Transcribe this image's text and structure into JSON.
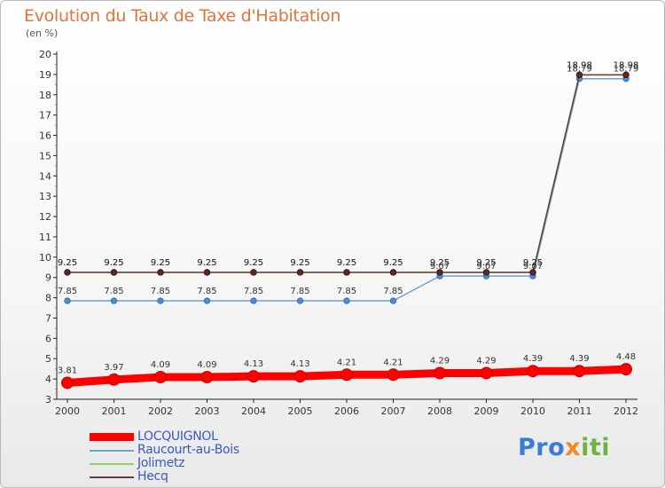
{
  "header": {
    "title": "Evolution du Taux de Taxe d'Habitation",
    "unit": "(en %)"
  },
  "chart_data": {
    "type": "line",
    "x": [
      2000,
      2001,
      2002,
      2003,
      2004,
      2005,
      2006,
      2007,
      2008,
      2009,
      2010,
      2011,
      2012
    ],
    "ylim": [
      3,
      20
    ],
    "yticks": [
      3,
      4,
      5,
      6,
      7,
      8,
      9,
      10,
      11,
      12,
      13,
      14,
      15,
      16,
      17,
      18,
      19,
      20
    ],
    "grid": false,
    "legend_position": "bottom-left",
    "series": [
      {
        "name": "LOCQUIGNOL",
        "color": "#ff0000",
        "values": [
          3.81,
          3.97,
          4.09,
          4.09,
          4.13,
          4.13,
          4.21,
          4.21,
          4.29,
          4.29,
          4.39,
          4.39,
          4.48
        ],
        "labels": [
          "3.81",
          "3.97",
          "4.09",
          "4.09",
          "4.13",
          "4.13",
          "4.21",
          "4.21",
          "4.29",
          "4.29",
          "4.39",
          "4.39",
          "4.48"
        ]
      },
      {
        "name": "Raucourt-au-Bois",
        "color": "#6aa3d8",
        "values": [
          7.85,
          7.85,
          7.85,
          7.85,
          7.85,
          7.85,
          7.85,
          7.85,
          9.07,
          9.07,
          9.07,
          18.79,
          18.79
        ],
        "labels": [
          "7.85",
          "7.85",
          "7.85",
          "7.85",
          "7.85",
          "7.85",
          "7.85",
          "7.85",
          "9.07",
          "9.07",
          "9.07",
          "18.79",
          "18.79"
        ]
      },
      {
        "name": "Jolimetz",
        "color": "#99cc66",
        "values": [
          9.25,
          9.25,
          9.25,
          9.25,
          9.25,
          9.25,
          9.25,
          9.25,
          9.25,
          9.25,
          9.25,
          18.98,
          18.98
        ],
        "labels": [
          "9.25",
          "9.25",
          "9.25",
          "9.25",
          "9.25",
          "9.25",
          "9.25",
          "9.25",
          "9.25",
          "9.25",
          "9.25",
          "18.98",
          "18.98"
        ]
      },
      {
        "name": "Hecq",
        "color": "#6b3a3a",
        "values": [
          9.25,
          9.25,
          9.25,
          9.25,
          9.25,
          9.25,
          9.25,
          9.25,
          9.25,
          9.25,
          9.25,
          18.98,
          18.98
        ],
        "labels": [
          "9.25",
          "9.25",
          "9.25",
          "9.25",
          "9.25",
          "9.25",
          "9.25",
          "9.25",
          "9.25",
          "9.25",
          "9.25",
          "18.98",
          "18.98"
        ]
      }
    ]
  },
  "legend": {
    "items": [
      "LOCQUIGNOL",
      "Raucourt-au-Bois",
      "Jolimetz",
      "Hecq"
    ]
  },
  "logo": {
    "part1": "Pro",
    "part2": "x",
    "part3": "iti"
  }
}
